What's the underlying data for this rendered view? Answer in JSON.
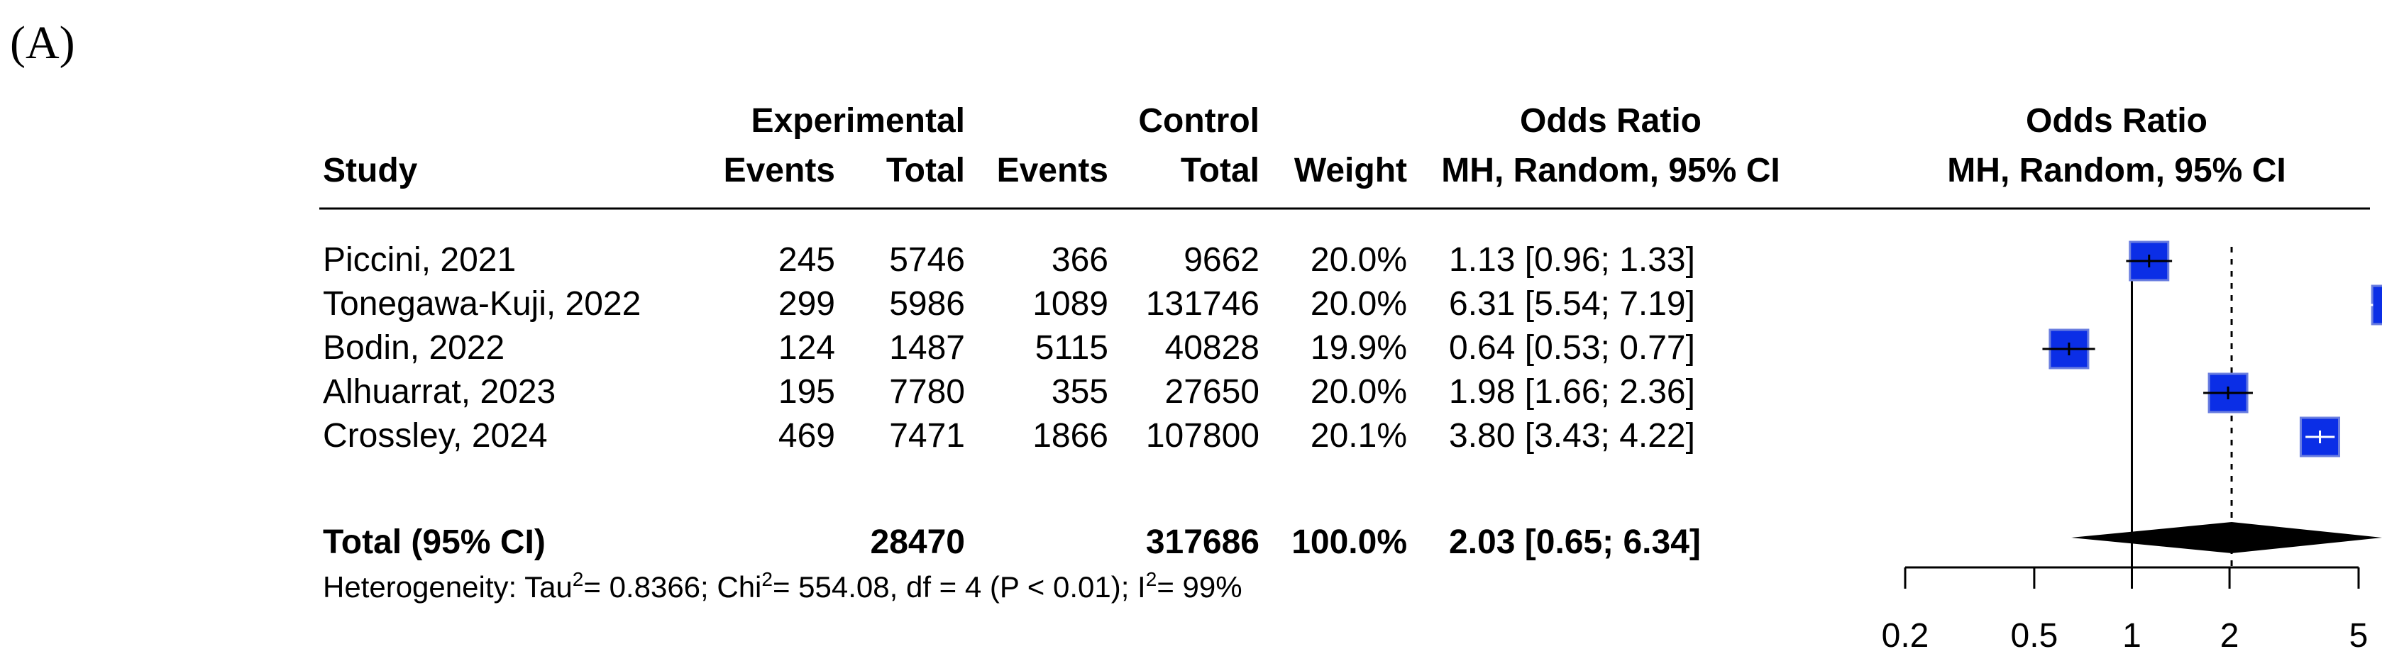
{
  "panel_label": "(A)",
  "chart_data": {
    "type": "forest",
    "headers": {
      "study": "Study",
      "experimental": "Experimental",
      "control": "Control",
      "events": "Events",
      "total": "Total",
      "weight": "Weight",
      "or_title": "Odds Ratio",
      "or_method": "MH, Random, 95% CI"
    },
    "studies": [
      {
        "study": "Piccini, 2021",
        "exp_events": "245",
        "exp_total": "5746",
        "ctrl_events": "366",
        "ctrl_total": "9662",
        "weight": "20.0%",
        "ci_text": "1.13 [0.96; 1.33]",
        "or": 1.13,
        "lo": 0.96,
        "hi": 1.33,
        "w": 20.0
      },
      {
        "study": "Tonegawa-Kuji, 2022",
        "exp_events": "299",
        "exp_total": "5986",
        "ctrl_events": "1089",
        "ctrl_total": "131746",
        "weight": "20.0%",
        "ci_text": "6.31 [5.54; 7.19]",
        "or": 6.31,
        "lo": 5.54,
        "hi": 7.19,
        "w": 20.0
      },
      {
        "study": "Bodin, 2022",
        "exp_events": "124",
        "exp_total": "1487",
        "ctrl_events": "5115",
        "ctrl_total": "40828",
        "weight": "19.9%",
        "ci_text": "0.64 [0.53; 0.77]",
        "or": 0.64,
        "lo": 0.53,
        "hi": 0.77,
        "w": 19.9
      },
      {
        "study": "Alhuarrat, 2023",
        "exp_events": "195",
        "exp_total": "7780",
        "ctrl_events": "355",
        "ctrl_total": "27650",
        "weight": "20.0%",
        "ci_text": "1.98 [1.66; 2.36]",
        "or": 1.98,
        "lo": 1.66,
        "hi": 2.36,
        "w": 20.0
      },
      {
        "study": "Crossley, 2024",
        "exp_events": "469",
        "exp_total": "7471",
        "ctrl_events": "1866",
        "ctrl_total": "107800",
        "weight": "20.1%",
        "ci_text": "3.80 [3.43; 4.22]",
        "or": 3.8,
        "lo": 3.43,
        "hi": 4.22,
        "w": 20.1
      }
    ],
    "total": {
      "label": "Total (95% CI)",
      "exp_total": "28470",
      "ctrl_total": "317686",
      "weight": "100.0%",
      "ci_text": "2.03 [0.65; 6.34]",
      "or": 2.03,
      "lo": 0.65,
      "hi": 6.34
    },
    "heterogeneity": {
      "prefix": "Heterogeneity: Tau",
      "tau2": "= 0.8366; Chi",
      "chi2": "= 554.08, df = 4 (P < 0.01); I",
      "i2": "= 99%",
      "sup": "2"
    },
    "x_axis": {
      "scale": "log",
      "ticks": [
        0.2,
        0.5,
        1,
        2,
        5
      ],
      "tick_labels": [
        "0.2",
        "0.5",
        "1",
        "2",
        "5"
      ],
      "range": [
        0.2,
        5
      ],
      "reference_line": 1,
      "pooled_line": 2.03
    },
    "colors": {
      "box_fill": "#0b2ee6",
      "box_stroke": "#6b7fe0",
      "diamond": "#000000",
      "text": "#000000"
    }
  }
}
